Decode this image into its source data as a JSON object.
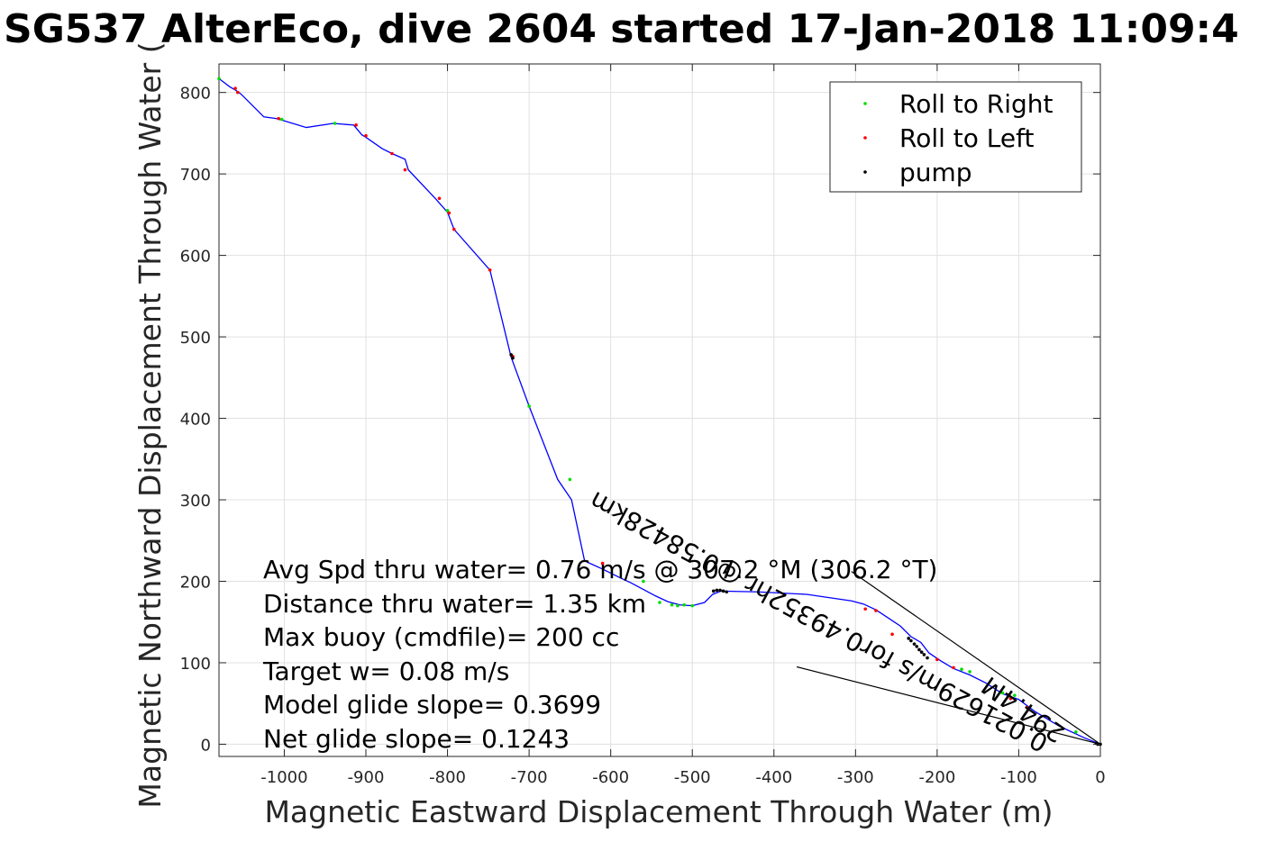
{
  "chart_data": {
    "type": "line",
    "title": "SG537 AlterEco, dive 2604 started 17-Jan-2018 11:09:4",
    "xlabel": "Magnetic Eastward Displacement Through Water (m)",
    "ylabel": "Magnetic Northward Displacement Through Water (",
    "xlim": [
      -1080,
      0
    ],
    "ylim": [
      -15,
      835
    ],
    "xticks": [
      -1000,
      -900,
      -800,
      -700,
      -600,
      -500,
      -400,
      -300,
      -200,
      -100,
      0
    ],
    "yticks": [
      0,
      100,
      200,
      300,
      400,
      500,
      600,
      700,
      800
    ],
    "grid": true,
    "legend_position": "top-right",
    "colors": {
      "track": "#0000ff",
      "roll_right": "#00dd00",
      "roll_left": "#ff0000",
      "pump": "#000000",
      "annotation_line": "#000000"
    },
    "series": [
      {
        "name": "track",
        "x": [
          0,
          -20,
          -50,
          -80,
          -100,
          -120,
          -140,
          -160,
          -180,
          -195,
          -210,
          -220,
          -232,
          -245,
          -260,
          -275,
          -290,
          -305,
          -360,
          -420,
          -465,
          -475,
          -485,
          -500,
          -515,
          -530,
          -545,
          -560,
          -575,
          -590,
          -610,
          -632,
          -648,
          -665,
          -700,
          -722,
          -748,
          -792,
          -800,
          -815,
          -848,
          -852,
          -868,
          -880,
          -900,
          -905,
          -915,
          -940,
          -973,
          -1003,
          -1010,
          -1025,
          -1053,
          -1060,
          -1067,
          -1080
        ],
        "y": [
          0,
          8,
          22,
          40,
          55,
          62,
          75,
          85,
          93,
          102,
          112,
          125,
          132,
          145,
          155,
          165,
          172,
          176,
          184,
          187,
          188,
          184,
          174,
          170,
          171,
          175,
          182,
          190,
          198,
          205,
          215,
          225,
          300,
          325,
          415,
          475,
          582,
          632,
          653,
          670,
          705,
          718,
          725,
          731,
          745,
          748,
          760,
          762,
          757,
          766,
          768,
          770,
          798,
          803,
          807,
          817
        ]
      },
      {
        "name": "Roll to Right",
        "x": [
          -1080,
          -1003,
          -938,
          -800,
          -700,
          -650,
          -500,
          -510,
          -518,
          -525,
          -540,
          -560,
          -170,
          -160,
          -120,
          -105,
          -30
        ],
        "y": [
          817,
          767,
          762,
          655,
          415,
          325,
          170,
          171,
          170,
          171,
          174,
          200,
          92,
          89,
          63,
          60,
          15
        ]
      },
      {
        "name": "Roll to Left",
        "x": [
          -1060,
          -1057,
          -1007,
          -912,
          -900,
          -868,
          -852,
          -810,
          -798,
          -792,
          -748,
          -720,
          -610,
          -288,
          -275,
          -255,
          -200,
          -180,
          -110,
          -90,
          -3
        ],
        "y": [
          805,
          800,
          768,
          760,
          747,
          725,
          705,
          670,
          652,
          632,
          582,
          476,
          222,
          166,
          164,
          135,
          104,
          94,
          56,
          45,
          0
        ]
      },
      {
        "name": "pump",
        "x": [
          -722,
          -720,
          -474,
          -470,
          -466,
          -462,
          -458,
          -235,
          -232,
          -228,
          -225,
          -222,
          -219,
          -216,
          -212,
          -5,
          -3,
          0
        ],
        "y": [
          478,
          474,
          188,
          189,
          189,
          188,
          187,
          130,
          127,
          123,
          120,
          116,
          113,
          110,
          106,
          1,
          0,
          0
        ]
      }
    ],
    "annotation_lines": [
      {
        "x": [
          0,
          -305
        ],
        "y": [
          0,
          212
        ]
      },
      {
        "x": [
          0,
          -372
        ],
        "y": [
          0,
          95
        ]
      }
    ],
    "annotations": [
      "Avg Spd thru water=  0.76 m/s @ 307.2 °M (306.2 °T)",
      "Distance thru water=  1.35 km",
      "Max buoy (cmdfile)= 200 cc",
      "Target w= 0.08 m/s",
      "Model glide slope= 0.3699",
      "Net glide slope= 0.1243"
    ],
    "rotated_annotations": [
      "294.4M",
      "0.021629m/s for0.49352hr @0.58428km"
    ]
  }
}
